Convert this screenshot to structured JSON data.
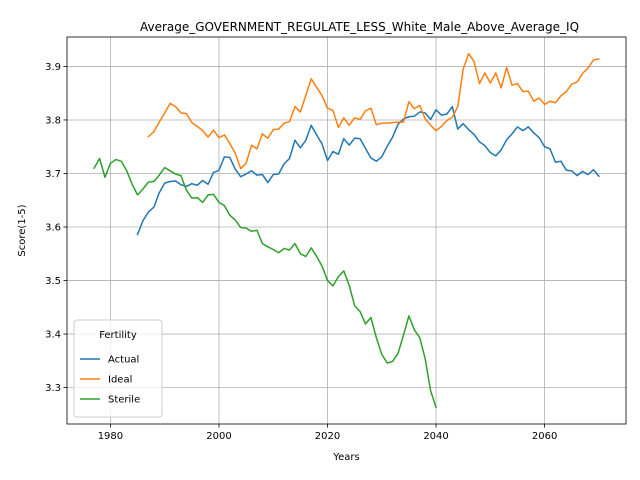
{
  "chart_data": {
    "type": "line",
    "title": "Average_GOVERNMENT_REGULATE_LESS_White_Male_Above_Average_IQ",
    "xlabel": "Years",
    "ylabel": "Score(1-5)",
    "xlim": [
      1972,
      2075
    ],
    "ylim": [
      3.232,
      3.955
    ],
    "xticks": [
      1980,
      2000,
      2020,
      2040,
      2060
    ],
    "yticks": [
      3.3,
      3.4,
      3.5,
      3.6,
      3.7,
      3.8,
      3.9
    ],
    "ytick_labels": [
      "3.3",
      "3.4",
      "3.5",
      "3.6",
      "3.7",
      "3.8",
      "3.9"
    ],
    "grid": true,
    "legend": {
      "title": "Fertility",
      "position": "lower-left"
    },
    "series": [
      {
        "name": "Actual",
        "color": "#1f77b4",
        "x": [
          1985,
          1986,
          1987,
          1988,
          1989,
          1990,
          1991,
          1992,
          1993,
          1994,
          1995,
          1996,
          1997,
          1998,
          1999,
          2000,
          2001,
          2002,
          2003,
          2004,
          2005,
          2006,
          2007,
          2008,
          2009,
          2010,
          2011,
          2012,
          2013,
          2014,
          2015,
          2016,
          2017,
          2018,
          2019,
          2020,
          2021,
          2022,
          2023,
          2024,
          2025,
          2026,
          2027,
          2028,
          2029,
          2030,
          2031,
          2032,
          2033,
          2034,
          2035,
          2036,
          2037,
          2038,
          2039,
          2040,
          2041,
          2042,
          2043,
          2044,
          2045,
          2046,
          2047,
          2048,
          2049,
          2050,
          2051,
          2052,
          2053,
          2054,
          2055,
          2056,
          2057,
          2058,
          2059,
          2060,
          2061,
          2062,
          2063,
          2064,
          2065,
          2066,
          2067,
          2068,
          2069,
          2070
        ],
        "values": [
          3.586,
          3.612,
          3.628,
          3.637,
          3.664,
          3.682,
          3.685,
          3.686,
          3.679,
          3.676,
          3.681,
          3.678,
          3.687,
          3.68,
          3.702,
          3.706,
          3.731,
          3.73,
          3.708,
          3.694,
          3.699,
          3.705,
          3.697,
          3.698,
          3.683,
          3.698,
          3.699,
          3.718,
          3.728,
          3.762,
          3.748,
          3.762,
          3.79,
          3.772,
          3.755,
          3.724,
          3.741,
          3.736,
          3.765,
          3.753,
          3.766,
          3.765,
          3.747,
          3.729,
          3.723,
          3.731,
          3.751,
          3.768,
          3.792,
          3.802,
          3.806,
          3.807,
          3.815,
          3.813,
          3.801,
          3.819,
          3.809,
          3.811,
          3.825,
          3.783,
          3.793,
          3.782,
          3.773,
          3.759,
          3.752,
          3.739,
          3.733,
          3.744,
          3.763,
          3.774,
          3.787,
          3.78,
          3.787,
          3.776,
          3.767,
          3.75,
          3.746,
          3.721,
          3.723,
          3.706,
          3.705,
          3.696,
          3.704,
          3.698,
          3.707,
          3.695
        ]
      },
      {
        "name": "Ideal",
        "color": "#ff7f0e",
        "x": [
          1987,
          1988,
          1989,
          1990,
          1991,
          1992,
          1993,
          1994,
          1995,
          1996,
          1997,
          1998,
          1999,
          2000,
          2001,
          2002,
          2003,
          2004,
          2005,
          2006,
          2007,
          2008,
          2009,
          2010,
          2011,
          2012,
          2013,
          2014,
          2015,
          2016,
          2017,
          2018,
          2019,
          2020,
          2021,
          2022,
          2023,
          2024,
          2025,
          2026,
          2027,
          2028,
          2029,
          2030,
          2031,
          2032,
          2033,
          2034,
          2035,
          2036,
          2037,
          2038,
          2039,
          2040,
          2041,
          2042,
          2043,
          2044,
          2045,
          2046,
          2047,
          2048,
          2049,
          2050,
          2051,
          2052,
          2053,
          2054,
          2055,
          2056,
          2057,
          2058,
          2059,
          2060,
          2061,
          2062,
          2063,
          2064,
          2065,
          2066,
          2067,
          2068,
          2069,
          2070
        ],
        "values": [
          3.769,
          3.778,
          3.796,
          3.813,
          3.831,
          3.825,
          3.813,
          3.812,
          3.795,
          3.788,
          3.78,
          3.768,
          3.781,
          3.767,
          3.772,
          3.756,
          3.738,
          3.709,
          3.719,
          3.753,
          3.746,
          3.774,
          3.766,
          3.782,
          3.783,
          3.794,
          3.797,
          3.825,
          3.815,
          3.846,
          3.877,
          3.861,
          3.845,
          3.822,
          3.818,
          3.786,
          3.804,
          3.79,
          3.804,
          3.801,
          3.817,
          3.822,
          3.791,
          3.794,
          3.794,
          3.795,
          3.796,
          3.796,
          3.834,
          3.821,
          3.827,
          3.802,
          3.79,
          3.78,
          3.788,
          3.799,
          3.805,
          3.825,
          3.895,
          3.924,
          3.909,
          3.868,
          3.888,
          3.869,
          3.888,
          3.86,
          3.898,
          3.865,
          3.868,
          3.853,
          3.854,
          3.835,
          3.841,
          3.829,
          3.835,
          3.832,
          3.845,
          3.853,
          3.867,
          3.871,
          3.887,
          3.897,
          3.912,
          3.914
        ]
      },
      {
        "name": "Sterile",
        "color": "#2ca02c",
        "x": [
          1977,
          1978,
          1979,
          1980,
          1981,
          1982,
          1983,
          1984,
          1985,
          1986,
          1987,
          1988,
          1989,
          1990,
          1991,
          1992,
          1993,
          1994,
          1995,
          1996,
          1997,
          1998,
          1999,
          2000,
          2001,
          2002,
          2003,
          2004,
          2005,
          2006,
          2007,
          2008,
          2009,
          2010,
          2011,
          2012,
          2013,
          2014,
          2015,
          2016,
          2017,
          2018,
          2019,
          2020,
          2021,
          2022,
          2023,
          2024,
          2025,
          2026,
          2027,
          2028,
          2029,
          2030,
          2031,
          2032,
          2033,
          2034,
          2035,
          2036,
          2037,
          2038,
          2039,
          2040
        ],
        "values": [
          3.71,
          3.728,
          3.693,
          3.719,
          3.726,
          3.723,
          3.705,
          3.68,
          3.66,
          3.671,
          3.684,
          3.685,
          3.697,
          3.711,
          3.705,
          3.699,
          3.696,
          3.669,
          3.654,
          3.655,
          3.646,
          3.66,
          3.661,
          3.646,
          3.64,
          3.622,
          3.613,
          3.599,
          3.598,
          3.592,
          3.594,
          3.569,
          3.563,
          3.558,
          3.552,
          3.56,
          3.557,
          3.569,
          3.55,
          3.545,
          3.561,
          3.545,
          3.527,
          3.5,
          3.49,
          3.507,
          3.518,
          3.491,
          3.453,
          3.442,
          3.419,
          3.431,
          3.393,
          3.362,
          3.346,
          3.349,
          3.364,
          3.398,
          3.434,
          3.408,
          3.393,
          3.354,
          3.294,
          3.263
        ]
      }
    ]
  }
}
